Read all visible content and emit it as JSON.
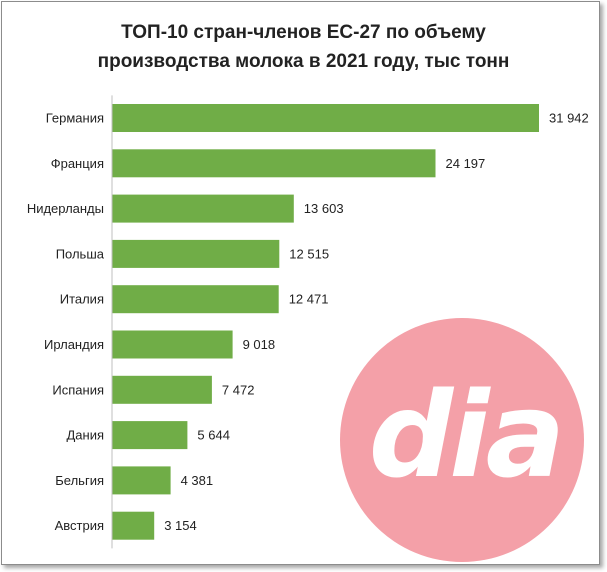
{
  "chart_data": {
    "type": "bar",
    "orientation": "horizontal",
    "title_line1": "ТОП-10 стран-членов ЕС-27 по объему",
    "title_line2": "производства молока в 2021 году, тыс тонн",
    "categories": [
      "Германия",
      "Франция",
      "Нидерланды",
      "Польша",
      "Италия",
      "Ирландия",
      "Испания",
      "Дания",
      "Бельгия",
      "Австрия"
    ],
    "values": [
      31942,
      24197,
      13603,
      12515,
      12471,
      9018,
      7472,
      5644,
      4381,
      3154
    ],
    "value_labels": [
      "31 942",
      "24 197",
      "13 603",
      "12 515",
      "12 471",
      "9 018",
      "7 472",
      "5 644",
      "4 381",
      "3 154"
    ],
    "xlim": [
      0,
      31942
    ],
    "grid": false,
    "legend": "none",
    "bar_color": "#70ad47"
  },
  "watermark": {
    "text": "dia",
    "circle_color": "#f4a0a8",
    "text_color": "#ffffff"
  }
}
